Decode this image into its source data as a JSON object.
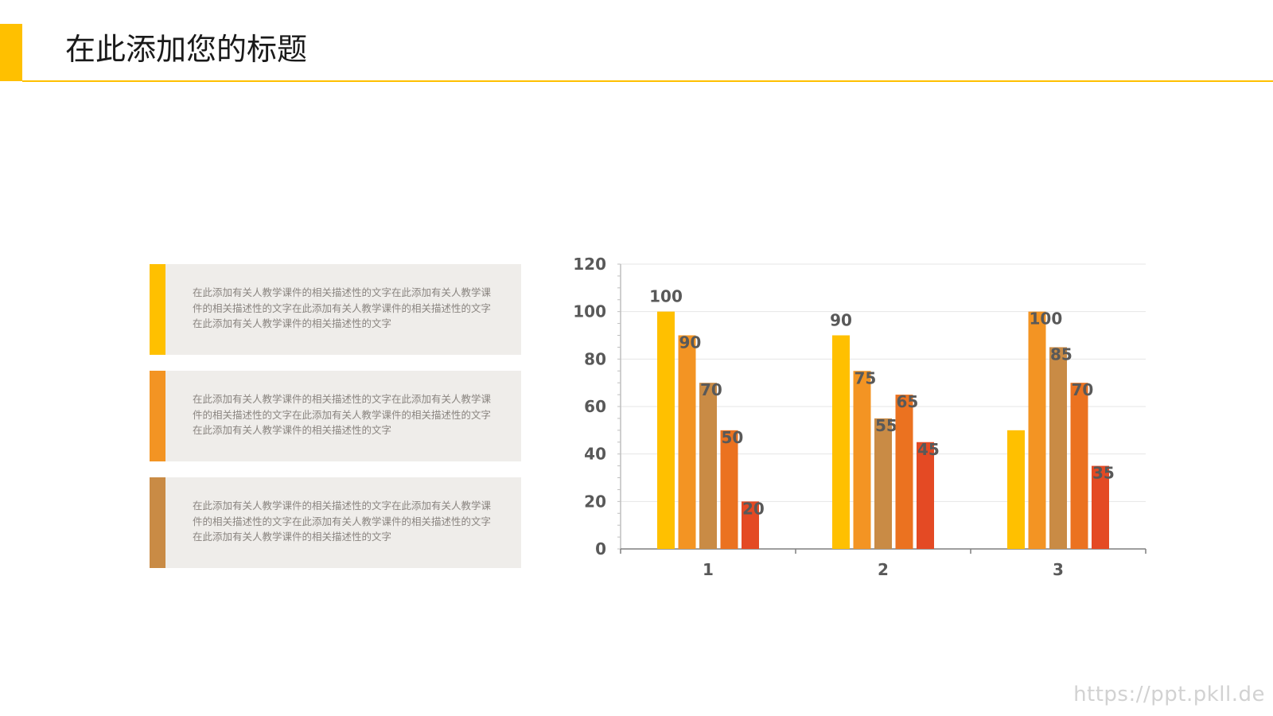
{
  "page": {
    "title": "在此添加您的标题",
    "accent_color": "#FFC000",
    "watermark": "https://ppt.pkll.de"
  },
  "cards": [
    {
      "text": "在此添加有关人教学课件的相关描述性的文字在此添加有关人教学课件的相关描述性的文字在此添加有关人教学课件的相关描述性的文字在此添加有关人教学课件的相关描述性的文字",
      "color": "#FFC000"
    },
    {
      "text": "在此添加有关人教学课件的相关描述性的文字在此添加有关人教学课件的相关描述性的文字在此添加有关人教学课件的相关描述性的文字在此添加有关人教学课件的相关描述性的文字",
      "color": "#F39423"
    },
    {
      "text": "在此添加有关人教学课件的相关描述性的文字在此添加有关人教学课件的相关描述性的文字在此添加有关人教学课件的相关描述性的文字在此添加有关人教学课件的相关描述性的文字",
      "color": "#C98B45"
    }
  ],
  "chart_data": {
    "type": "bar",
    "title": "",
    "xlabel": "",
    "ylabel": "",
    "categories": [
      "1",
      "2",
      "3"
    ],
    "ylim": [
      0,
      120
    ],
    "yticks": [
      0,
      20,
      40,
      60,
      80,
      100,
      120
    ],
    "grid": true,
    "legend": "none",
    "series": [
      {
        "values": [
          100,
          90,
          50
        ],
        "color": "#FFC000",
        "labels": [
          "100",
          "90",
          ""
        ]
      },
      {
        "values": [
          90,
          75,
          100
        ],
        "color": "#F39423",
        "labels": [
          "90",
          "75",
          "100"
        ]
      },
      {
        "values": [
          70,
          55,
          85
        ],
        "color": "#C98B45",
        "labels": [
          "70",
          "55",
          "85"
        ]
      },
      {
        "values": [
          50,
          65,
          70
        ],
        "color": "#EB7220",
        "labels": [
          "50",
          "65",
          "70"
        ]
      },
      {
        "values": [
          20,
          45,
          35
        ],
        "color": "#E44A24",
        "labels": [
          "20",
          "45",
          "35"
        ]
      }
    ]
  }
}
